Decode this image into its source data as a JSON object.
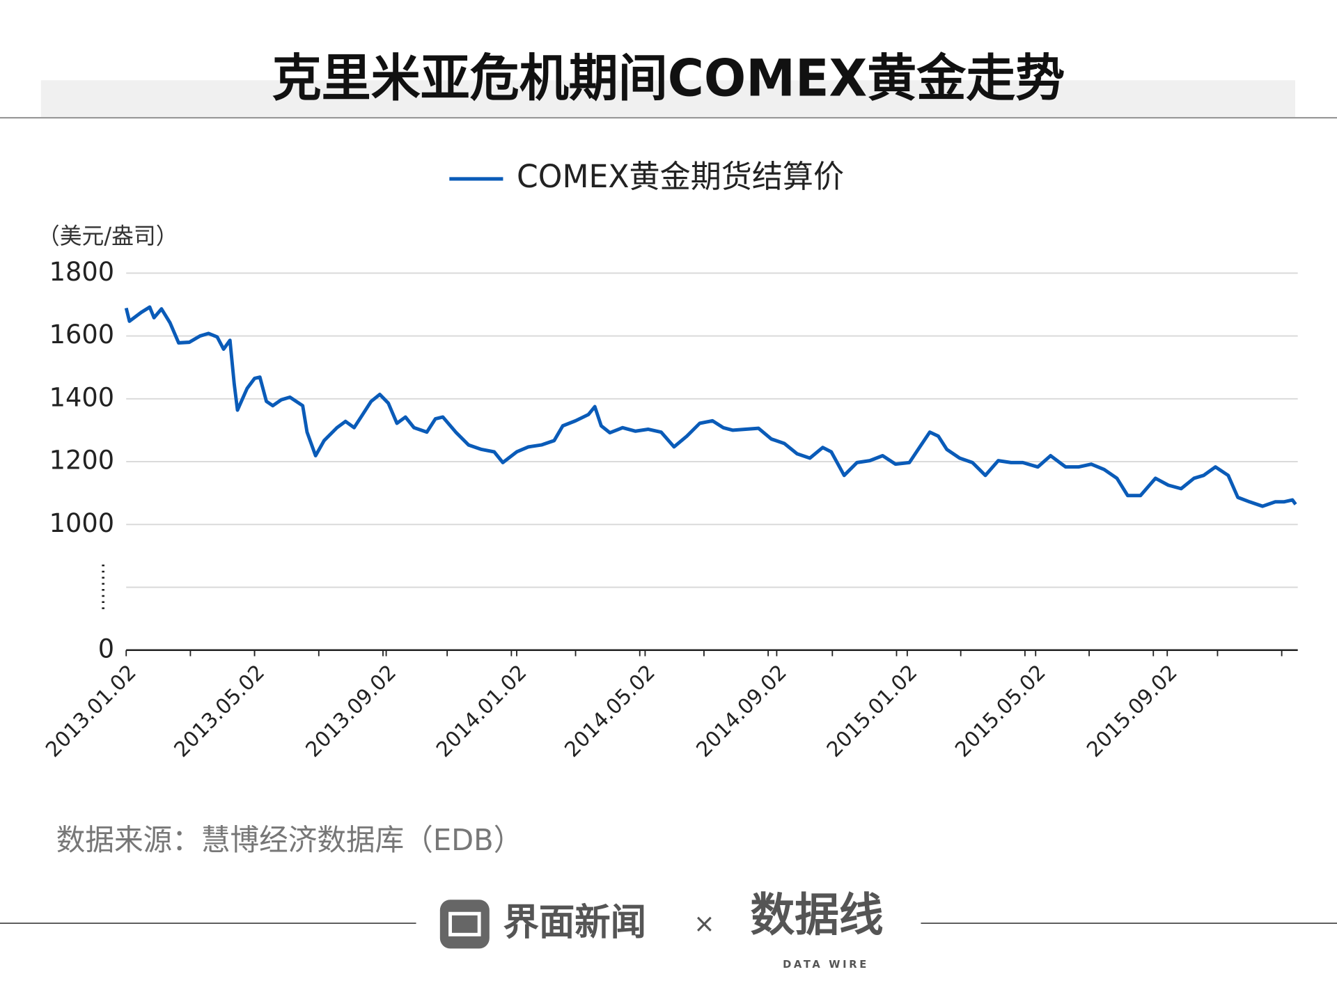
{
  "chart_data": {
    "type": "line",
    "title": "克里米亚危机期间COMEX黄金走势",
    "y_label": "（美元/盎司）",
    "source": "数据来源：慧博经济数据库（EDB）",
    "ylim": [
      0,
      1800
    ],
    "yticks": [
      0,
      1000,
      1200,
      1400,
      1600,
      1800
    ],
    "y_break": [
      0,
      800
    ],
    "xlim": [
      "2013.01.02",
      "2016.01.02"
    ],
    "xticks": [
      "2013.01.02",
      "2013.05.02",
      "2013.09.02",
      "2014.01.02",
      "2014.05.02",
      "2014.09.02",
      "2015.01.02",
      "2015.05.02",
      "2015.09.02"
    ],
    "grid": true,
    "legend": "top",
    "x": [
      "2013.01.02",
      "2013.01.05",
      "2013.01.16",
      "2013.01.24",
      "2013.01.28",
      "2013.02.04",
      "2013.02.12",
      "2013.02.20",
      "2013.03.02",
      "2013.03.12",
      "2013.03.20",
      "2013.03.28",
      "2013.04.03",
      "2013.04.09",
      "2013.04.13",
      "2013.04.16",
      "2013.04.25",
      "2013.05.02",
      "2013.05.07",
      "2013.05.13",
      "2013.05.19",
      "2013.05.27",
      "2013.06.04",
      "2013.06.16",
      "2013.06.20",
      "2013.06.28",
      "2013.07.06",
      "2013.07.18",
      "2013.07.26",
      "2013.08.03",
      "2013.08.11",
      "2013.08.19",
      "2013.08.27",
      "2013.09.04",
      "2013.09.12",
      "2013.09.20",
      "2013.09.28",
      "2013.10.10",
      "2013.10.18",
      "2013.10.25",
      "2013.11.06",
      "2013.11.18",
      "2013.11.30",
      "2013.12.12",
      "2013.12.20",
      "2014.01.02",
      "2014.01.13",
      "2014.01.25",
      "2014.02.06",
      "2014.02.14",
      "2014.02.26",
      "2014.03.10",
      "2014.03.16",
      "2014.03.22",
      "2014.03.30",
      "2014.04.11",
      "2014.04.23",
      "2014.05.05",
      "2014.05.17",
      "2014.05.29",
      "2014.06.10",
      "2014.06.22",
      "2014.07.04",
      "2014.07.14",
      "2014.07.23",
      "2014.08.04",
      "2014.08.16",
      "2014.08.28",
      "2014.09.09",
      "2014.09.21",
      "2014.10.03",
      "2014.10.15",
      "2014.10.23",
      "2014.11.04",
      "2014.11.16",
      "2014.11.28",
      "2014.12.10",
      "2014.12.22",
      "2015.01.04",
      "2015.01.15",
      "2015.01.23",
      "2015.01.31",
      "2015.02.08",
      "2015.02.20",
      "2015.03.04",
      "2015.03.16",
      "2015.03.28",
      "2015.04.09",
      "2015.04.20",
      "2015.05.04",
      "2015.05.16",
      "2015.05.30",
      "2015.06.11",
      "2015.06.23",
      "2015.07.05",
      "2015.07.17",
      "2015.07.27",
      "2015.08.08",
      "2015.08.22",
      "2015.09.03",
      "2015.09.15",
      "2015.09.27",
      "2015.10.06",
      "2015.10.17",
      "2015.10.29",
      "2015.11.07",
      "2015.11.18",
      "2015.11.30",
      "2015.12.12",
      "2015.12.20",
      "2015.12.28",
      "2015.12.31"
    ],
    "series": [
      {
        "name": "COMEX黄金期货结算价",
        "color": "#0a5bb8",
        "values": [
          1689,
          1647,
          1675,
          1692,
          1658,
          1686,
          1642,
          1578,
          1580,
          1600,
          1608,
          1597,
          1558,
          1586,
          1447,
          1364,
          1433,
          1465,
          1469,
          1392,
          1378,
          1397,
          1405,
          1378,
          1294,
          1219,
          1267,
          1308,
          1328,
          1308,
          1350,
          1392,
          1414,
          1386,
          1322,
          1342,
          1308,
          1294,
          1336,
          1342,
          1294,
          1253,
          1239,
          1231,
          1197,
          1231,
          1247,
          1253,
          1267,
          1314,
          1330,
          1350,
          1375,
          1314,
          1292,
          1308,
          1297,
          1303,
          1294,
          1247,
          1281,
          1322,
          1330,
          1308,
          1300,
          1303,
          1306,
          1272,
          1258,
          1225,
          1211,
          1245,
          1231,
          1156,
          1197,
          1203,
          1219,
          1192,
          1197,
          1253,
          1294,
          1281,
          1239,
          1211,
          1197,
          1156,
          1203,
          1197,
          1197,
          1183,
          1219,
          1183,
          1183,
          1192,
          1175,
          1147,
          1092,
          1092,
          1147,
          1125,
          1114,
          1147,
          1156,
          1183,
          1156,
          1086,
          1072,
          1058,
          1072,
          1072,
          1078,
          1064
        ]
      }
    ]
  },
  "footer": {
    "brand": "界面新闻",
    "times": "×",
    "partner": "数据线",
    "partner_en": "DATA WIRE"
  }
}
